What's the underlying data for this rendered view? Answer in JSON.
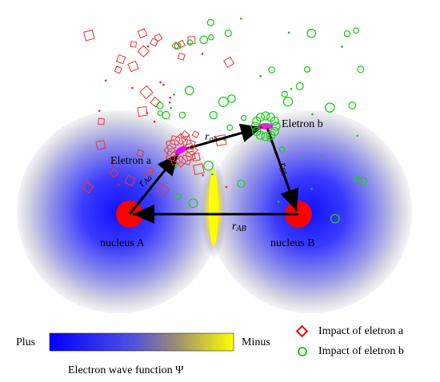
{
  "labels": {
    "electron_a": "Eletron a",
    "electron_b": "Eletron b",
    "r_ab": {
      "symbol": "r",
      "subscript": "ab"
    },
    "r_Aa": {
      "symbol": "r",
      "subscript": "Aa"
    },
    "r_Bb": {
      "symbol": "r",
      "subscript": "Bb"
    },
    "r_AB": {
      "symbol": "r",
      "subscript": "AB"
    },
    "nucleus_a": "nucleus A",
    "nucleus_b": "nucleus B"
  },
  "colorbar": {
    "low_label": "Plus",
    "high_label": "Minus",
    "caption": "Electron wave function Ψ"
  },
  "legend": {
    "items": [
      "Impact of eletron a",
      "Impact of eletron b"
    ]
  }
}
